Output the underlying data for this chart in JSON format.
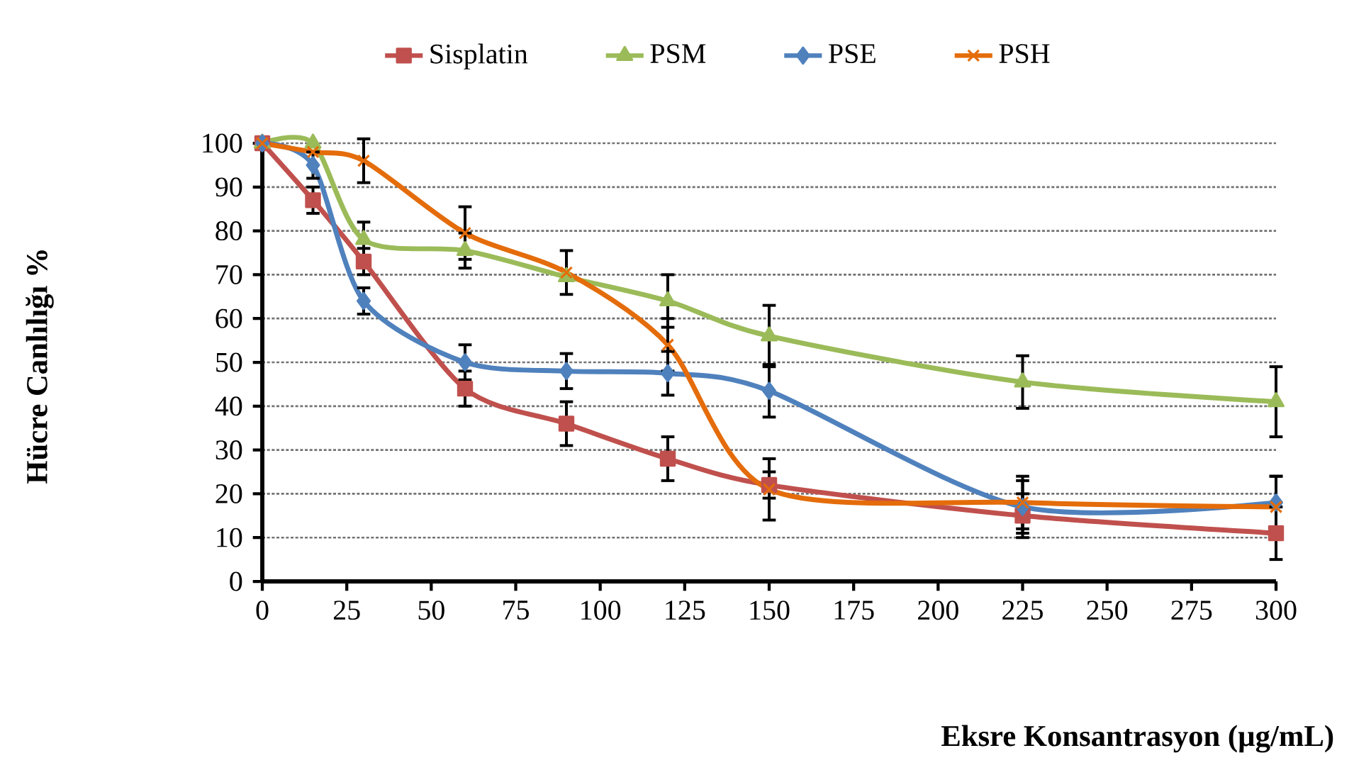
{
  "chart_data": {
    "type": "line",
    "xlabel": "Eksre Konsantrasyon (µg/mL)",
    "ylabel": "Hücre Canlılığı %",
    "x": [
      0,
      15,
      30,
      60,
      90,
      120,
      150,
      225,
      300
    ],
    "series": [
      {
        "name": "Sisplatin",
        "color": "#c0504d",
        "marker": "square",
        "values": [
          100,
          87,
          73,
          44,
          36,
          28,
          22,
          15,
          11
        ],
        "errors": [
          null,
          3,
          3,
          4,
          5,
          5,
          3,
          5,
          6
        ]
      },
      {
        "name": "PSM",
        "color": "#9bbb59",
        "marker": "triangle",
        "values": [
          100,
          100,
          78,
          75.5,
          69.5,
          64,
          56,
          45.5,
          41
        ],
        "errors": [
          null,
          null,
          4,
          4,
          null,
          6,
          7,
          6,
          8
        ]
      },
      {
        "name": "PSE",
        "color": "#4f81bd",
        "marker": "diamond",
        "values": [
          100,
          95,
          64,
          50,
          48,
          47.5,
          43.5,
          17,
          18
        ],
        "errors": [
          null,
          3,
          3,
          4,
          4,
          5,
          6,
          6,
          6
        ]
      },
      {
        "name": "PSH",
        "color": "#e46c0a",
        "marker": "cross",
        "values": [
          100,
          98,
          96,
          79.5,
          70.5,
          54,
          21,
          18,
          17
        ],
        "errors": [
          null,
          null,
          5,
          6,
          5,
          6,
          7,
          6,
          7
        ]
      }
    ],
    "xlim": [
      0,
      300
    ],
    "ylim": [
      0,
      100
    ],
    "xticks": [
      0,
      25,
      50,
      75,
      100,
      125,
      150,
      175,
      200,
      225,
      250,
      275,
      300
    ],
    "yticks": [
      0,
      10,
      20,
      30,
      40,
      50,
      60,
      70,
      80,
      90,
      100
    ],
    "grid": "y",
    "legend": "top",
    "line_style": "solid"
  }
}
